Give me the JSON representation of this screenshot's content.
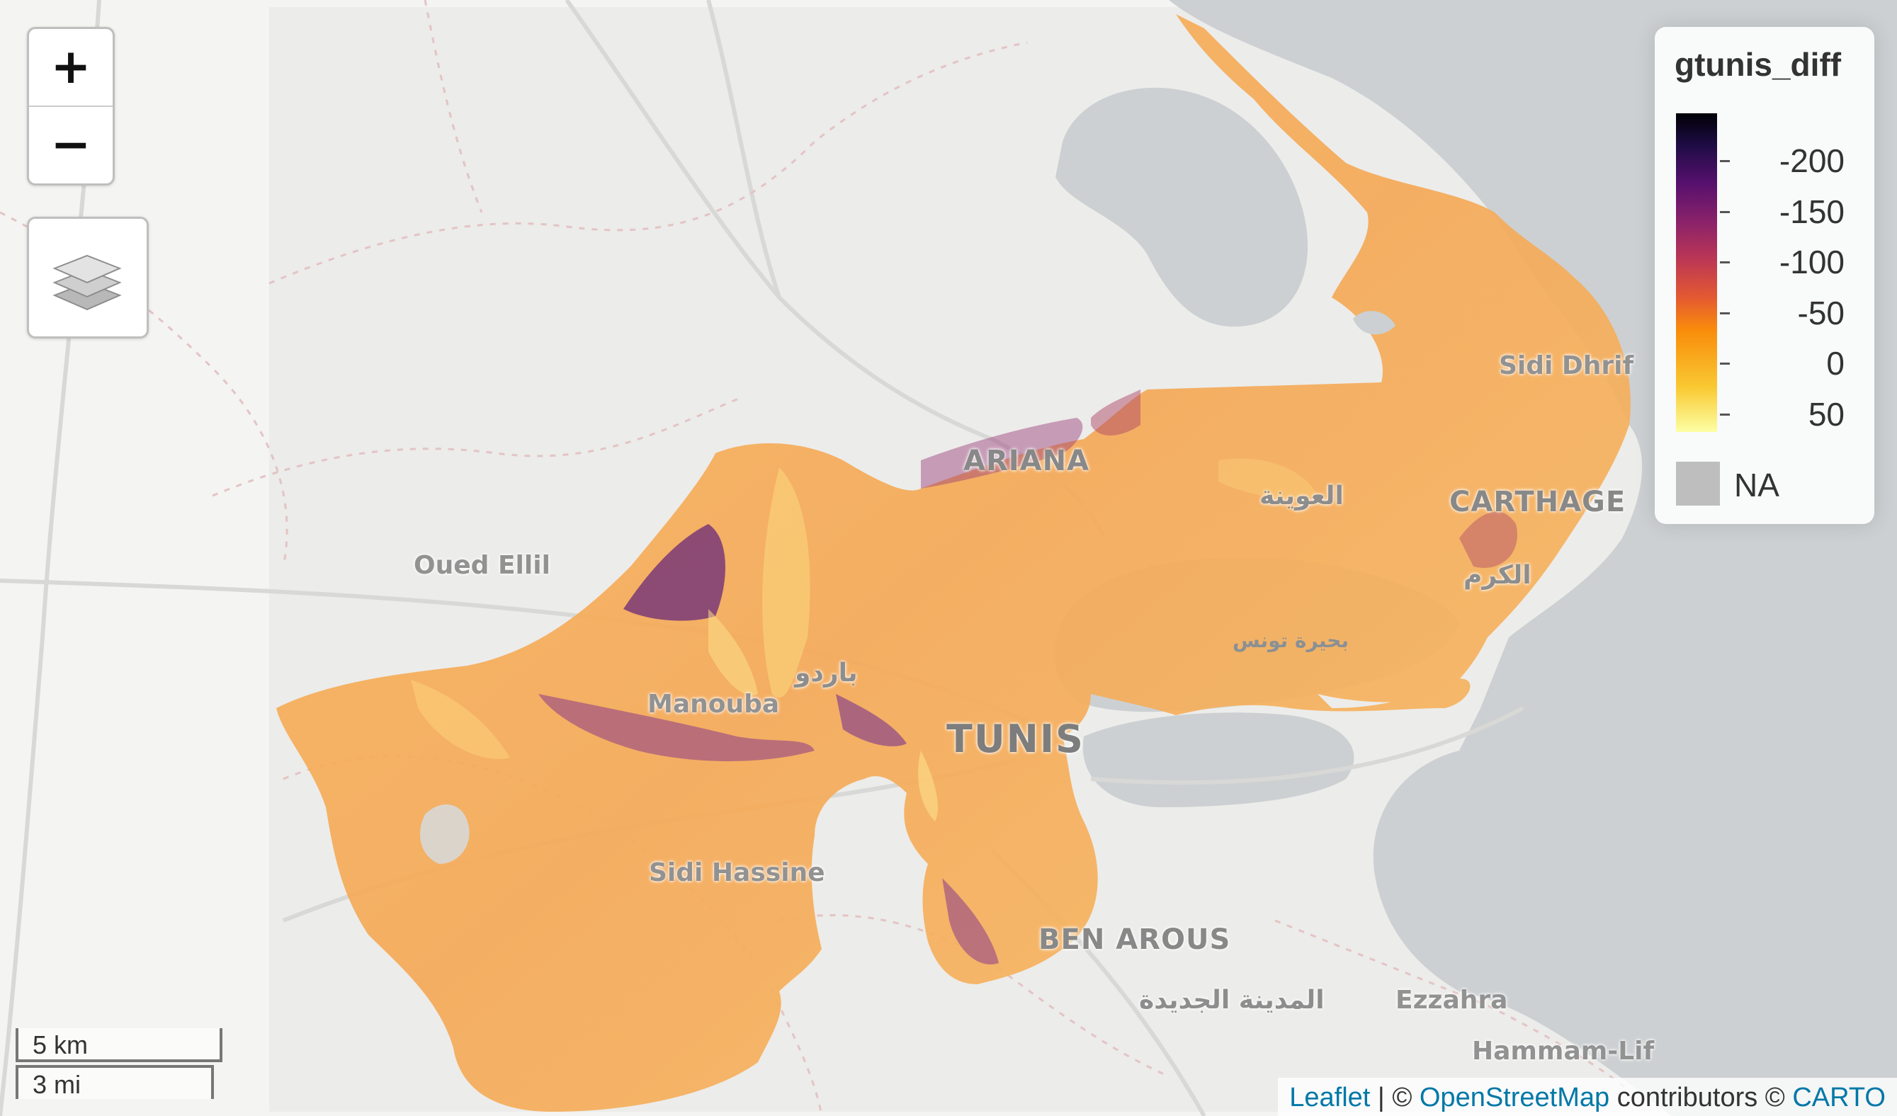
{
  "map": {
    "places": {
      "tunis": "TUNIS",
      "ariana": "ARIANA",
      "carthage": "CARTHAGE",
      "ben_arous": "BEN AROUS",
      "oued_ellil": "Oued Ellil",
      "manouba": "Manouba",
      "sidi_hassine": "Sidi Hassine",
      "sidi_dhrif": "Sidi Dhrif",
      "ezzahra": "Ezzahra",
      "hammam_lif": "Hammam-Lif",
      "bardo_ar": "باردو",
      "aouina_ar": "العوينة",
      "kram_ar": "الكرم",
      "lake_tunis_ar": "بحيرة تونس",
      "medina_jadida_ar": "المدينة الجديدة"
    }
  },
  "controls": {
    "zoom_in": "+",
    "zoom_out": "−",
    "layers_icon": "layers-icon"
  },
  "legend": {
    "title": "gtunis_diff",
    "ticks": [
      "-200",
      "-150",
      "-100",
      "-50",
      "0",
      "50"
    ],
    "na_label": "NA",
    "na_color": "#bebebe",
    "palette": [
      "#000004",
      "#57106e",
      "#bc3754",
      "#f98c0a",
      "#fcffa4"
    ]
  },
  "scale": {
    "km": "5 km",
    "mi": "3 mi"
  },
  "attribution": {
    "leaflet": "Leaflet",
    "sep": " | © ",
    "osm": "OpenStreetMap",
    "contributors": " contributors © ",
    "carto": "CARTO"
  }
}
